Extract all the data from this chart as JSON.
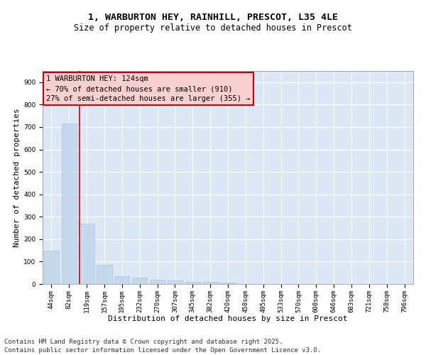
{
  "title_line1": "1, WARBURTON HEY, RAINHILL, PRESCOT, L35 4LE",
  "title_line2": "Size of property relative to detached houses in Prescot",
  "xlabel": "Distribution of detached houses by size in Prescot",
  "ylabel": "Number of detached properties",
  "categories": [
    "44sqm",
    "82sqm",
    "119sqm",
    "157sqm",
    "195sqm",
    "232sqm",
    "270sqm",
    "307sqm",
    "345sqm",
    "382sqm",
    "420sqm",
    "458sqm",
    "495sqm",
    "533sqm",
    "570sqm",
    "608sqm",
    "646sqm",
    "683sqm",
    "721sqm",
    "758sqm",
    "796sqm"
  ],
  "values": [
    148,
    715,
    270,
    85,
    35,
    30,
    20,
    15,
    10,
    8,
    5,
    0,
    0,
    0,
    0,
    0,
    0,
    0,
    0,
    0,
    0
  ],
  "bar_color": "#c6d9ec",
  "bar_edgecolor": "#a8c4dc",
  "vline_color": "#cc0000",
  "vline_xindex": 2,
  "annotation_text": "1 WARBURTON HEY: 124sqm\n← 70% of detached houses are smaller (910)\n27% of semi-detached houses are larger (355) →",
  "annotation_box_facecolor": "#f8d0d0",
  "annotation_box_edgecolor": "#cc0000",
  "ylim": [
    0,
    950
  ],
  "yticks": [
    0,
    100,
    200,
    300,
    400,
    500,
    600,
    700,
    800,
    900
  ],
  "background_color": "#dce8f5",
  "grid_color": "#ffffff",
  "footer_text": "Contains HM Land Registry data © Crown copyright and database right 2025.\nContains public sector information licensed under the Open Government Licence v3.0.",
  "title_fontsize": 9.5,
  "subtitle_fontsize": 8.5,
  "axis_label_fontsize": 8,
  "tick_fontsize": 6.5,
  "annotation_fontsize": 7.5,
  "footer_fontsize": 6.5,
  "ylabel_fontsize": 8
}
